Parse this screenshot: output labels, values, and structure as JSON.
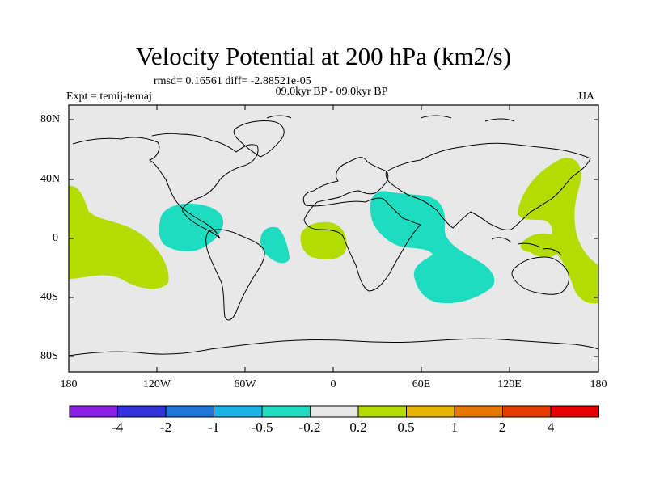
{
  "title": "Velocity Potential at 200 hPa (km2/s)",
  "subtitle": "rmsd= 0.16561 diff= -2.88521e-05",
  "expt": "Expt = temij-temaj",
  "period": "09.0kyr BP - 09.0kyr BP",
  "season": "JJA",
  "lat_labels": [
    "80N",
    "40N",
    "0",
    "40S",
    "80S"
  ],
  "lon_labels": [
    "180",
    "120W",
    "60W",
    "0",
    "60E",
    "120E",
    "180"
  ],
  "colorbar": {
    "labels": [
      "-4",
      "-2",
      "-1",
      "-0.5",
      "-0.2",
      "0.2",
      "0.5",
      "1",
      "2",
      "4"
    ],
    "colors": [
      "#8a1ee6",
      "#3232dc",
      "#1e78dc",
      "#18b4e6",
      "#1edcc0",
      "#e8e8e8",
      "#b4dc00",
      "#e6b400",
      "#e67800",
      "#e63c00",
      "#e60000"
    ]
  },
  "colors": {
    "map_background": "#e8e8e8",
    "negative_region": "#1edcc0",
    "positive_region": "#b4dc00"
  }
}
